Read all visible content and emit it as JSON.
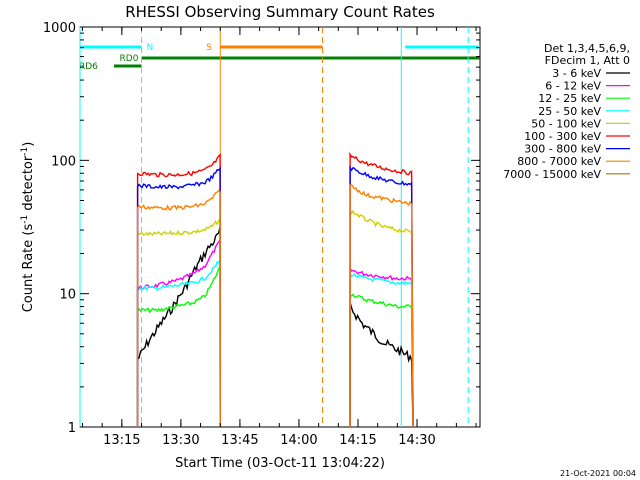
{
  "chart_data": {
    "type": "line",
    "title": "RHESSI Observing Summary Count Rates",
    "xlabel": "Start Time (03-Oct-11 13:04:22)",
    "ylabel_main": "Count Rate (s",
    "ylabel_sup1": "-1",
    "ylabel_mid": " detector",
    "ylabel_sup2": "-1",
    "ylabel_end": ")",
    "yscale": "log",
    "ylim": [
      1,
      1000
    ],
    "xlim": [
      "13:04:22",
      "14:46:00"
    ],
    "x_ticks": [
      "13:15",
      "13:30",
      "13:45",
      "14:00",
      "14:15",
      "14:30"
    ],
    "y_ticks": [
      "1",
      "10",
      "100",
      "1000"
    ],
    "legend_header": [
      "Det 1,3,4,5,6,9,",
      "FDecim 1, Att 0"
    ],
    "legend_position": "right",
    "series": [
      {
        "name": "3 - 6 keV",
        "color": "#000000",
        "segments": [
          {
            "t": [
              "13:19",
              "13:22",
              "13:25",
              "13:28",
              "13:31",
              "13:34",
              "13:37",
              "13:39",
              "13:40"
            ],
            "v": [
              3.2,
              4.5,
              6,
              8,
              11,
              16,
              22,
              26,
              30
            ]
          },
          {
            "t": [
              "14:13",
              "14:16",
              "14:19",
              "14:22",
              "14:25",
              "14:27",
              "14:29"
            ],
            "v": [
              8,
              6,
              5,
              4.2,
              3.8,
              3.5,
              3.3
            ]
          }
        ]
      },
      {
        "name": "6 - 12 keV",
        "color": "#ff00ff",
        "segments": [
          {
            "t": [
              "13:19",
              "13:24",
              "13:29",
              "13:33",
              "13:36",
              "13:38",
              "13:40"
            ],
            "v": [
              11,
              11.5,
              12.5,
              14,
              16,
              20,
              25
            ]
          },
          {
            "t": [
              "14:13",
              "14:17",
              "14:21",
              "14:25",
              "14:29"
            ],
            "v": [
              15,
              14,
              13.5,
              13,
              13
            ]
          }
        ]
      },
      {
        "name": "12 - 25 keV",
        "color": "#00ff00",
        "segments": [
          {
            "t": [
              "13:19",
              "13:24",
              "13:29",
              "13:33",
              "13:36",
              "13:38",
              "13:40"
            ],
            "v": [
              7.5,
              7.5,
              8,
              8.5,
              9.5,
              12,
              16
            ]
          },
          {
            "t": [
              "14:13",
              "14:17",
              "14:21",
              "14:25",
              "14:29"
            ],
            "v": [
              10,
              9,
              8.5,
              8,
              8
            ]
          }
        ]
      },
      {
        "name": "25 - 50 keV",
        "color": "#00ffff",
        "segments": [
          {
            "t": [
              "13:19",
              "13:24",
              "13:29",
              "13:33",
              "13:36",
              "13:38",
              "13:40"
            ],
            "v": [
              11,
              11,
              11.5,
              12,
              13,
              15,
              18
            ]
          },
          {
            "t": [
              "14:13",
              "14:17",
              "14:21",
              "14:25",
              "14:29"
            ],
            "v": [
              14,
              13,
              12.5,
              12,
              12
            ]
          }
        ]
      },
      {
        "name": "50 - 100 keV",
        "color": "#d0d000",
        "segments": [
          {
            "t": [
              "13:19",
              "13:24",
              "13:29",
              "13:33",
              "13:36",
              "13:38",
              "13:40"
            ],
            "v": [
              28,
              28,
              28.5,
              29,
              30,
              32,
              36
            ]
          },
          {
            "t": [
              "14:13",
              "14:17",
              "14:21",
              "14:25",
              "14:29"
            ],
            "v": [
              42,
              36,
              32,
              30,
              29
            ]
          }
        ]
      },
      {
        "name": "100 - 300 keV",
        "color": "#ff0000",
        "segments": [
          {
            "t": [
              "13:19",
              "13:24",
              "13:29",
              "13:33",
              "13:36",
              "13:38",
              "13:40"
            ],
            "v": [
              80,
              78,
              78,
              80,
              84,
              92,
              108
            ]
          },
          {
            "t": [
              "14:13",
              "14:17",
              "14:21",
              "14:25",
              "14:29"
            ],
            "v": [
              108,
              95,
              88,
              83,
              80
            ]
          }
        ]
      },
      {
        "name": "300 - 800 keV",
        "color": "#0000ff",
        "segments": [
          {
            "t": [
              "13:19",
              "13:24",
              "13:29",
              "13:33",
              "13:36",
              "13:38",
              "13:40"
            ],
            "v": [
              65,
              63,
              63,
              65,
              68,
              75,
              88
            ]
          },
          {
            "t": [
              "14:13",
              "14:17",
              "14:21",
              "14:25",
              "14:29"
            ],
            "v": [
              88,
              78,
              72,
              68,
              66
            ]
          }
        ]
      },
      {
        "name": "800 - 7000 keV",
        "color": "#ff8000",
        "segments": [
          {
            "t": [
              "13:19",
              "13:24",
              "13:29",
              "13:33",
              "13:36",
              "13:38",
              "13:40"
            ],
            "v": [
              45,
              44,
              44,
              45,
              47,
              52,
              60
            ]
          },
          {
            "t": [
              "14:13",
              "14:17",
              "14:21",
              "14:25",
              "14:29"
            ],
            "v": [
              65,
              55,
              52,
              49,
              47
            ]
          }
        ]
      },
      {
        "name": "7000 - 15000 keV",
        "color": "#a07800",
        "segments": []
      }
    ],
    "attenuator_bars": [
      {
        "label": "N",
        "color": "#00ffff",
        "level": "top",
        "ranges": [
          [
            "13:04:22",
            "13:20"
          ],
          [
            "14:27",
            "14:46"
          ]
        ]
      },
      {
        "label": "S",
        "color": "#ff8000",
        "level": "top",
        "ranges": [
          [
            "13:40",
            "14:06"
          ]
        ]
      },
      {
        "label": "RD0",
        "color": "#008000",
        "level": "mid",
        "ranges": [
          [
            "13:20",
            "14:46"
          ]
        ]
      },
      {
        "label": "RD6",
        "color": "#008000",
        "level": "low",
        "ranges": [
          [
            "13:13",
            "13:20"
          ]
        ]
      }
    ],
    "vertical_lines": [
      {
        "t": "13:04:22",
        "color": "#00ffff",
        "dashed": false
      },
      {
        "t": "13:20",
        "color": "#00ffff",
        "dashed": true
      },
      {
        "t": "13:40",
        "color": "#ff8000",
        "dashed": false
      },
      {
        "t": "14:06",
        "color": "#ff8000",
        "dashed": true
      },
      {
        "t": "14:26",
        "color": "#00ffff",
        "dashed": false
      },
      {
        "t": "14:43",
        "color": "#00ffff",
        "dashed": true
      }
    ]
  },
  "footer_timestamp": "21-Oct-2021 00:04"
}
